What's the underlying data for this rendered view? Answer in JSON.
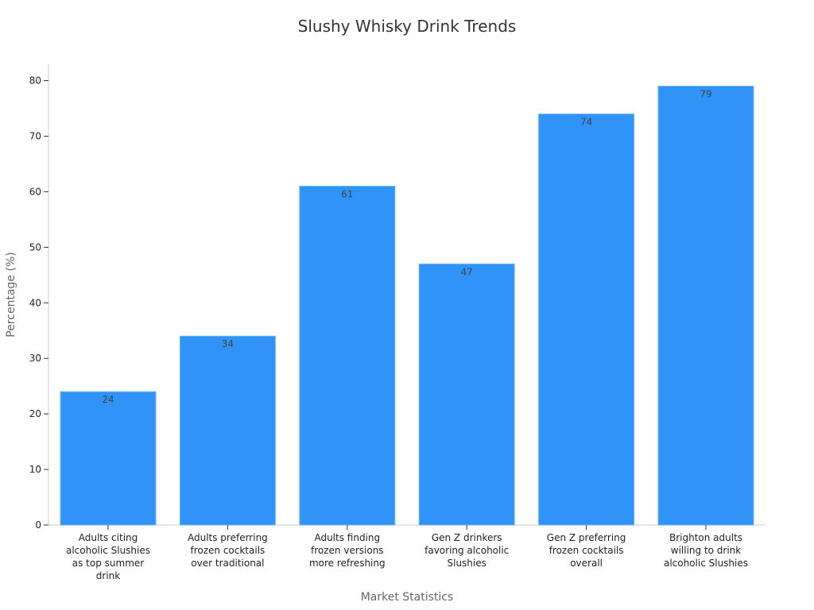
{
  "chart_data": {
    "type": "bar",
    "title": "Slushy Whisky Drink Trends",
    "xlabel": "Market Statistics",
    "ylabel": "Percentage (%)",
    "ylim": [
      0,
      80
    ],
    "yticks": [
      0,
      10,
      20,
      30,
      40,
      50,
      60,
      70,
      80
    ],
    "categories": [
      [
        "Adults citing",
        "alcoholic Slushies",
        "as top summer",
        "drink"
      ],
      [
        "Adults preferring",
        "frozen cocktails",
        "over traditional"
      ],
      [
        "Adults finding",
        "frozen versions",
        "more refreshing"
      ],
      [
        "Gen Z drinkers",
        "favoring alcoholic",
        "Slushies"
      ],
      [
        "Gen Z preferring",
        "frozen cocktails",
        "overall"
      ],
      [
        "Brighton adults",
        "willing to drink",
        "alcoholic Slushies"
      ]
    ],
    "values": [
      24,
      34,
      61,
      47,
      74,
      79
    ],
    "data_labels": [
      "24",
      "34",
      "61",
      "47",
      "74",
      "79"
    ],
    "bar_color": "#2f93f7",
    "grid": false,
    "legend": "none"
  }
}
